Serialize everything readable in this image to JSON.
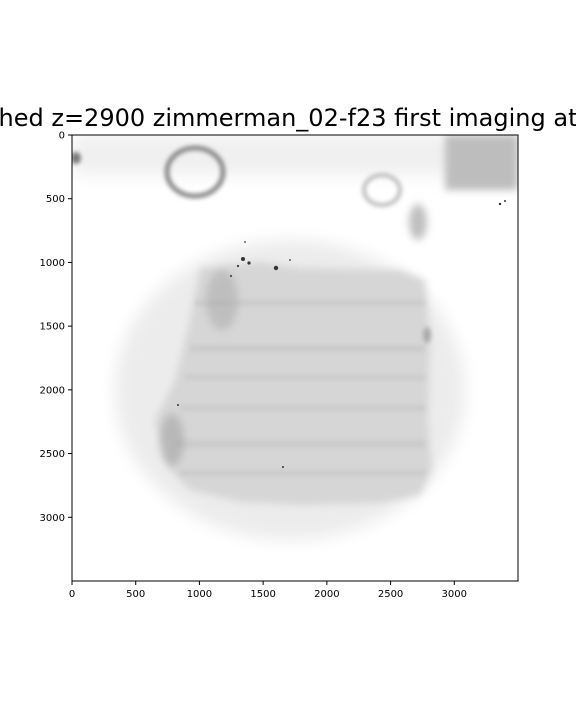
{
  "chart_data": {
    "type": "heatmap",
    "title": "hed z=2900 zimmerman_02-f23 first imaging at",
    "colormap": "grayscale (white = low, black = high)",
    "x_ticks": [
      "0",
      "500",
      "1000",
      "1500",
      "2000",
      "2500",
      "3000"
    ],
    "y_ticks": [
      "0",
      "500",
      "1000",
      "1500",
      "2000",
      "2500",
      "3000"
    ],
    "xlim": [
      0,
      3500
    ],
    "ylim": [
      3500,
      0
    ],
    "grid": false,
    "regions": [
      {
        "desc": "large diffuse gray slab",
        "x": [
          650,
          2800
        ],
        "y": [
          950,
          2850
        ],
        "intensity": 0.16
      },
      {
        "desc": "dense speckled cluster",
        "x": [
          1100,
          1400
        ],
        "y": [
          950,
          1550
        ],
        "intensity": 0.35
      },
      {
        "desc": "dark left edge band",
        "x": [
          650,
          950
        ],
        "y": [
          2100,
          2650
        ],
        "intensity": 0.3
      },
      {
        "desc": "upper-left ring",
        "x": [
          700,
          1200
        ],
        "y": [
          100,
          550
        ],
        "intensity": 0.3
      },
      {
        "desc": "upper-right ring",
        "x": [
          2250,
          2550
        ],
        "y": [
          300,
          600
        ],
        "intensity": 0.22
      },
      {
        "desc": "top-right dark corner",
        "x": [
          2950,
          3500
        ],
        "y": [
          0,
          450
        ],
        "intensity": 0.3
      }
    ]
  }
}
